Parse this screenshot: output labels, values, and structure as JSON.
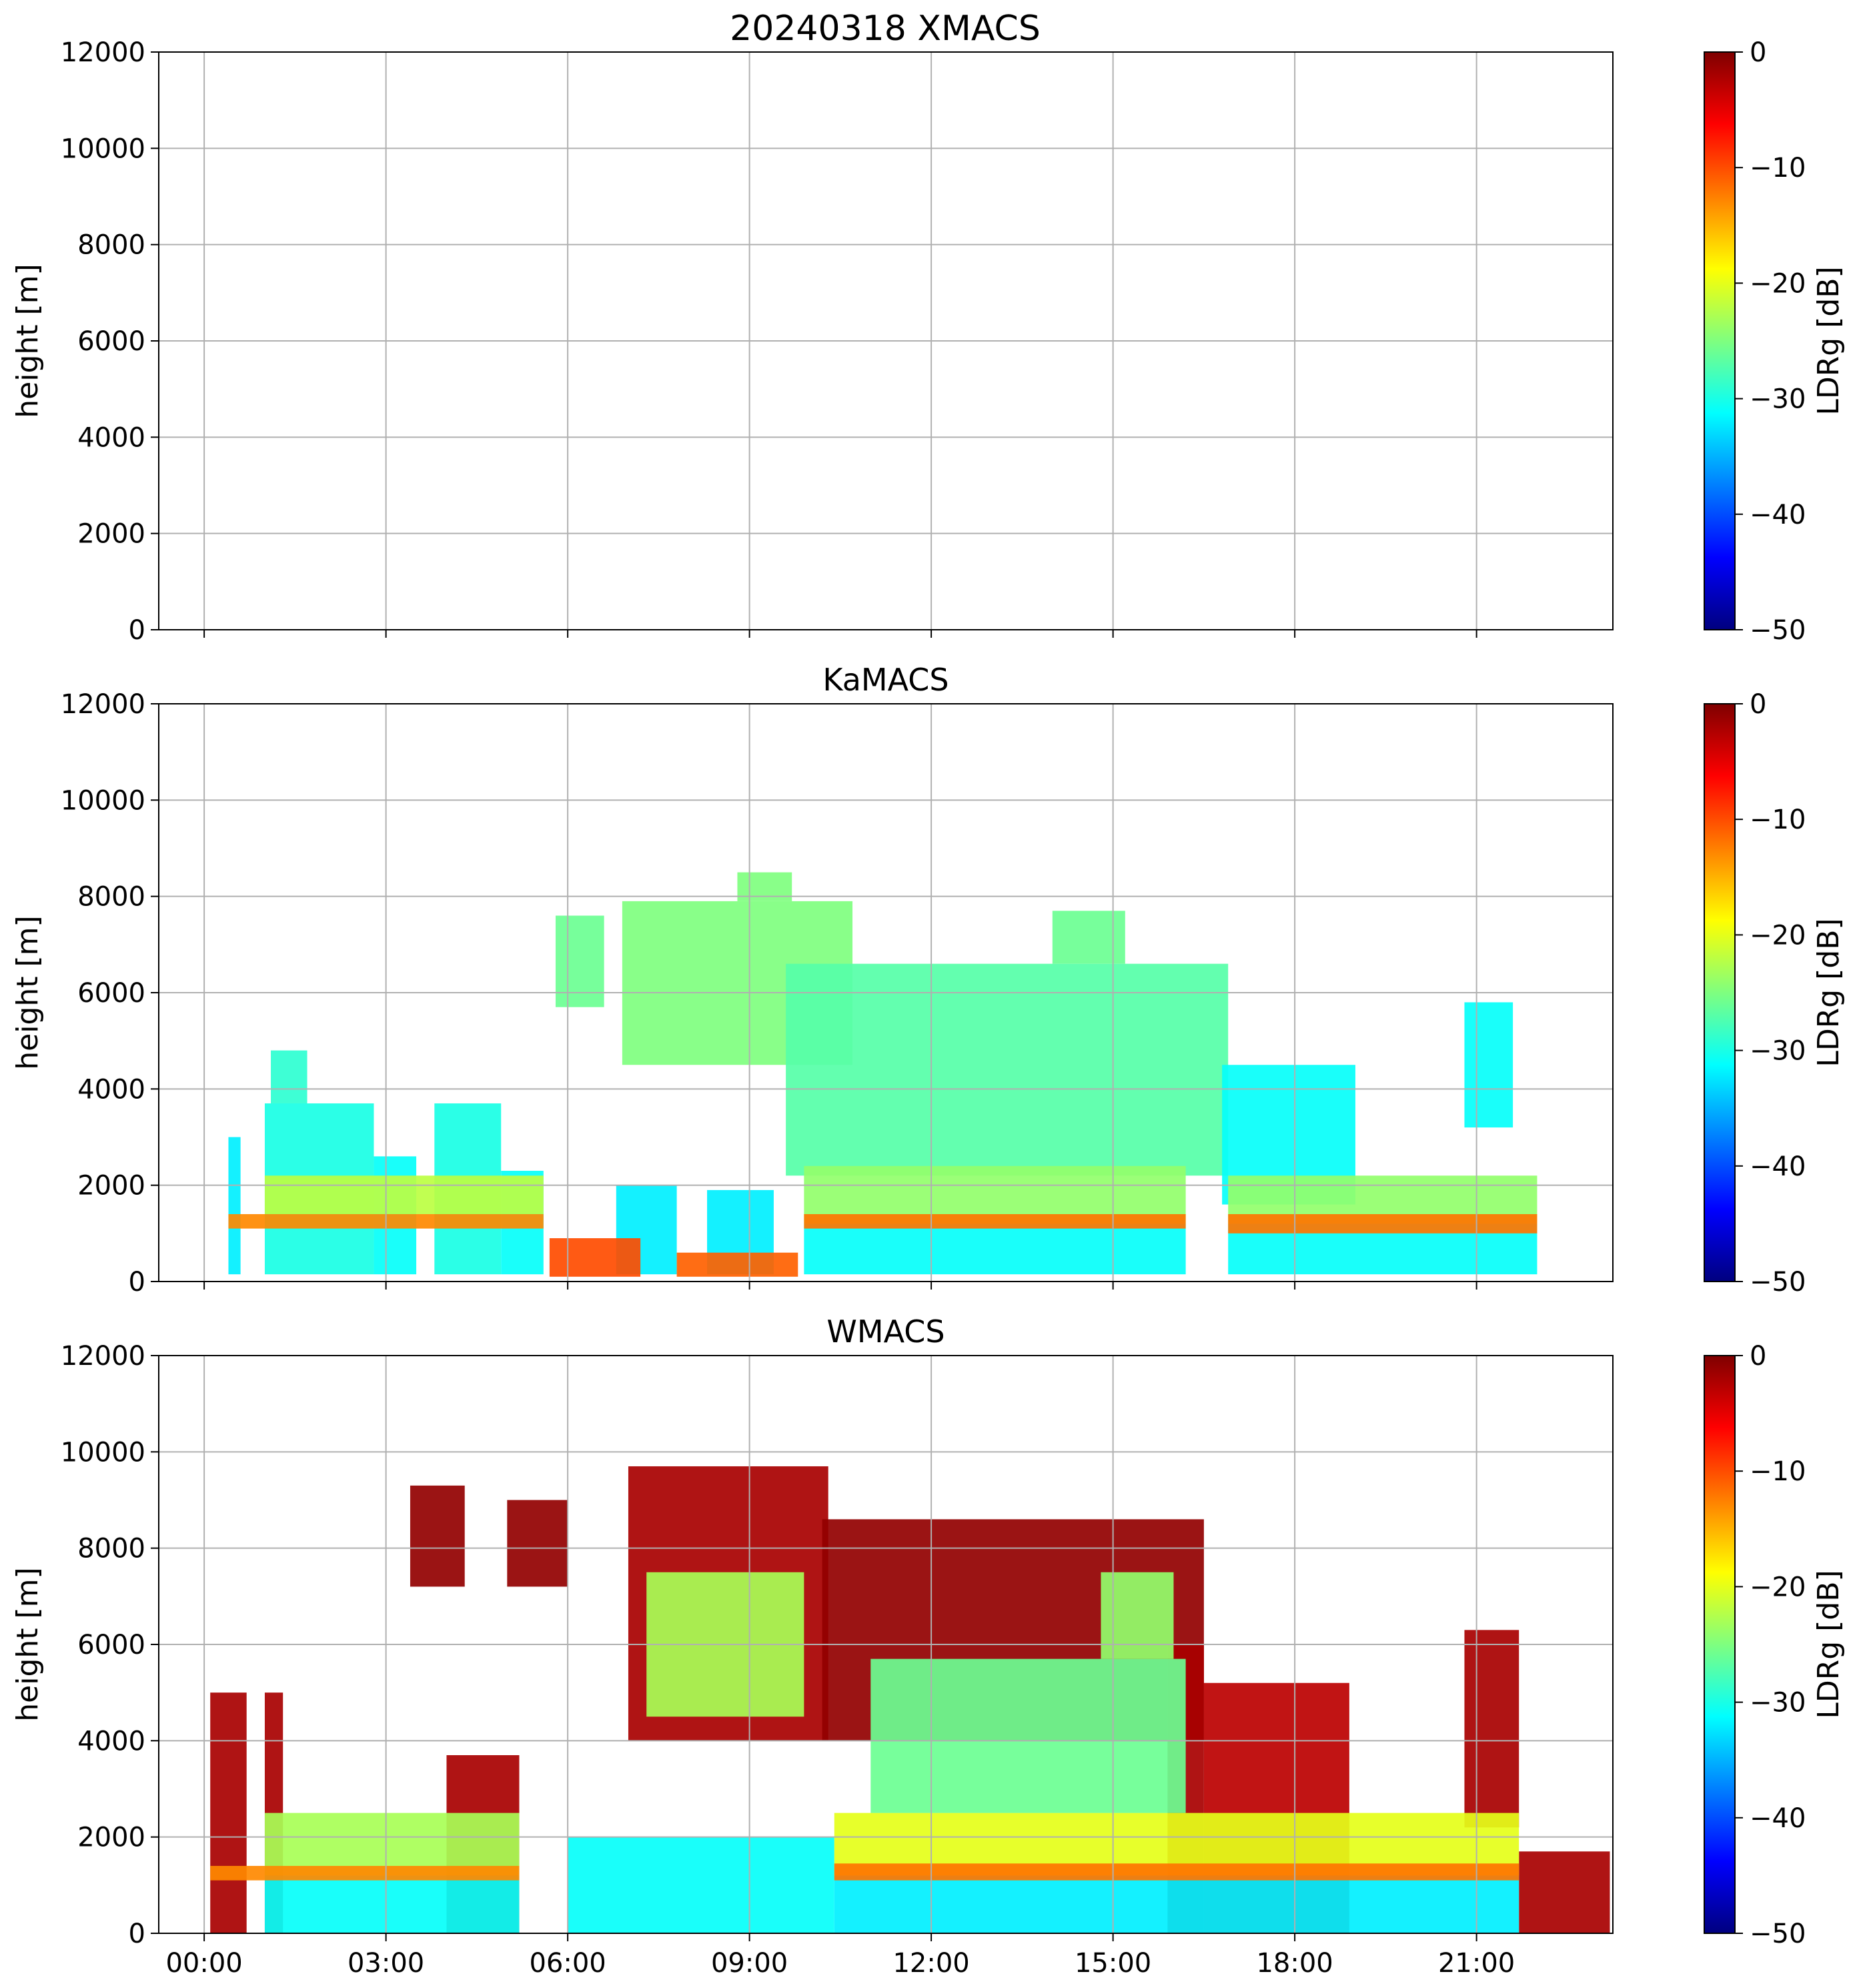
{
  "figure": {
    "title": "20240318 XMACS"
  },
  "colormap": [
    "#00007f",
    "#0000ff",
    "#007fff",
    "#00ffff",
    "#7fff7f",
    "#ffff00",
    "#ff7f00",
    "#ff0000",
    "#7f0000"
  ],
  "chart_data": [
    {
      "type": "heatmap",
      "title": "20240318 XMACS",
      "instrument": "XMACS",
      "xlabel": "",
      "ylabel": "height [m]",
      "ylim": [
        0,
        12000
      ],
      "yticks": [
        "0",
        "2000",
        "4000",
        "6000",
        "8000",
        "10000",
        "12000"
      ],
      "xlim_hours": [
        -0.75,
        23.25
      ],
      "xticks": [],
      "colorbar": {
        "label": "LDRg [dB]",
        "range": [
          -50,
          0
        ],
        "ticks": [
          "−50",
          "−40",
          "−30",
          "−20",
          "−10",
          "0"
        ]
      },
      "regions": []
    },
    {
      "type": "heatmap",
      "title": "KaMACS",
      "instrument": "KaMACS",
      "xlabel": "",
      "ylabel": "height [m]",
      "ylim": [
        0,
        12000
      ],
      "yticks": [
        "0",
        "2000",
        "4000",
        "6000",
        "8000",
        "10000",
        "12000"
      ],
      "xlim_hours": [
        -0.75,
        23.25
      ],
      "xticks": [],
      "colorbar": {
        "label": "LDRg [dB]",
        "range": [
          -50,
          0
        ],
        "ticks": [
          "−50",
          "−40",
          "−30",
          "−20",
          "−10",
          "0"
        ]
      },
      "regions": [
        {
          "t0": 0.4,
          "t1": 0.6,
          "h0": 150,
          "h1": 3000,
          "ldr": -32
        },
        {
          "t0": 1.0,
          "t1": 2.8,
          "h0": 150,
          "h1": 3700,
          "ldr": -30
        },
        {
          "t0": 1.1,
          "t1": 1.7,
          "h0": 3700,
          "h1": 4800,
          "ldr": -29
        },
        {
          "t0": 2.8,
          "t1": 3.5,
          "h0": 150,
          "h1": 2600,
          "ldr": -31
        },
        {
          "t0": 3.8,
          "t1": 4.9,
          "h0": 150,
          "h1": 3700,
          "ldr": -30
        },
        {
          "t0": 4.9,
          "t1": 5.6,
          "h0": 150,
          "h1": 2300,
          "ldr": -31
        },
        {
          "t0": 5.8,
          "t1": 6.6,
          "h0": 5700,
          "h1": 7600,
          "ldr": -26
        },
        {
          "t0": 6.9,
          "t1": 10.7,
          "h0": 4500,
          "h1": 7900,
          "ldr": -25
        },
        {
          "t0": 8.8,
          "t1": 9.7,
          "h0": 7900,
          "h1": 8500,
          "ldr": -25
        },
        {
          "t0": 9.6,
          "t1": 16.9,
          "h0": 2200,
          "h1": 6600,
          "ldr": -27
        },
        {
          "t0": 14.0,
          "t1": 15.2,
          "h0": 6600,
          "h1": 7700,
          "ldr": -26
        },
        {
          "t0": 16.8,
          "t1": 19.0,
          "h0": 1600,
          "h1": 4500,
          "ldr": -31
        },
        {
          "t0": 20.8,
          "t1": 21.6,
          "h0": 3200,
          "h1": 5800,
          "ldr": -31
        },
        {
          "t0": 6.8,
          "t1": 7.8,
          "h0": 150,
          "h1": 2000,
          "ldr": -32
        },
        {
          "t0": 8.3,
          "t1": 9.4,
          "h0": 150,
          "h1": 1900,
          "ldr": -32
        },
        {
          "t0": 9.9,
          "t1": 16.2,
          "h0": 150,
          "h1": 1200,
          "ldr": -31
        },
        {
          "t0": 16.9,
          "t1": 22.0,
          "h0": 150,
          "h1": 1200,
          "ldr": -31
        },
        {
          "t0": 9.9,
          "t1": 16.2,
          "h0": 1200,
          "h1": 2400,
          "ldr": -24
        },
        {
          "t0": 16.9,
          "t1": 22.0,
          "h0": 1200,
          "h1": 2200,
          "ldr": -24
        },
        {
          "t0": 1.0,
          "t1": 5.6,
          "h0": 1400,
          "h1": 2200,
          "ldr": -22
        },
        {
          "t0": 5.7,
          "t1": 7.2,
          "h0": 100,
          "h1": 900,
          "ldr": -10
        },
        {
          "t0": 7.8,
          "t1": 9.8,
          "h0": 100,
          "h1": 600,
          "ldr": -11
        },
        {
          "t0": 0.4,
          "t1": 5.6,
          "h0": 1100,
          "h1": 1400,
          "ldr": -13
        },
        {
          "t0": 9.9,
          "t1": 16.2,
          "h0": 1100,
          "h1": 1400,
          "ldr": -12
        },
        {
          "t0": 16.9,
          "t1": 22.0,
          "h0": 1000,
          "h1": 1400,
          "ldr": -12
        }
      ]
    },
    {
      "type": "heatmap",
      "title": "WMACS",
      "instrument": "WMACS",
      "xlabel": "",
      "ylabel": "height [m]",
      "ylim": [
        0,
        12000
      ],
      "yticks": [
        "0",
        "2000",
        "4000",
        "6000",
        "8000",
        "10000",
        "12000"
      ],
      "xlim_hours": [
        -0.75,
        23.25
      ],
      "xticks": [
        "00:00",
        "03:00",
        "06:00",
        "09:00",
        "12:00",
        "15:00",
        "18:00",
        "21:00"
      ],
      "colorbar": {
        "label": "LDRg [dB]",
        "range": [
          -50,
          0
        ],
        "ticks": [
          "−50",
          "−40",
          "−30",
          "−20",
          "−10",
          "0"
        ]
      },
      "regions": [
        {
          "t0": 0.1,
          "t1": 0.7,
          "h0": 0,
          "h1": 5000,
          "ldr": -2
        },
        {
          "t0": 1.0,
          "t1": 1.3,
          "h0": 0,
          "h1": 5000,
          "ldr": -2
        },
        {
          "t0": 4.0,
          "t1": 5.2,
          "h0": 0,
          "h1": 3700,
          "ldr": -2
        },
        {
          "t0": 3.4,
          "t1": 4.3,
          "h0": 7200,
          "h1": 9300,
          "ldr": -1
        },
        {
          "t0": 5.0,
          "t1": 6.0,
          "h0": 7200,
          "h1": 9000,
          "ldr": -1
        },
        {
          "t0": 7.0,
          "t1": 10.3,
          "h0": 4000,
          "h1": 9700,
          "ldr": -2
        },
        {
          "t0": 10.2,
          "t1": 16.5,
          "h0": 4000,
          "h1": 8600,
          "ldr": -1
        },
        {
          "t0": 15.9,
          "t1": 16.5,
          "h0": 0,
          "h1": 6000,
          "ldr": -2
        },
        {
          "t0": 16.5,
          "t1": 18.9,
          "h0": 0,
          "h1": 5200,
          "ldr": -3
        },
        {
          "t0": 20.8,
          "t1": 21.7,
          "h0": 2200,
          "h1": 6300,
          "ldr": -2
        },
        {
          "t0": 21.7,
          "t1": 23.2,
          "h0": 0,
          "h1": 1700,
          "ldr": -2
        },
        {
          "t0": 1.0,
          "t1": 5.2,
          "h0": 0,
          "h1": 1200,
          "ldr": -31
        },
        {
          "t0": 6.0,
          "t1": 10.4,
          "h0": 0,
          "h1": 2000,
          "ldr": -31
        },
        {
          "t0": 10.4,
          "t1": 21.7,
          "h0": 0,
          "h1": 1200,
          "ldr": -32
        },
        {
          "t0": 1.0,
          "t1": 5.2,
          "h0": 1200,
          "h1": 2500,
          "ldr": -23
        },
        {
          "t0": 10.4,
          "t1": 21.7,
          "h0": 1200,
          "h1": 2500,
          "ldr": -20
        },
        {
          "t0": 7.3,
          "t1": 9.9,
          "h0": 4500,
          "h1": 7500,
          "ldr": -23
        },
        {
          "t0": 11.0,
          "t1": 16.2,
          "h0": 2500,
          "h1": 5700,
          "ldr": -26
        },
        {
          "t0": 14.8,
          "t1": 16.0,
          "h0": 5700,
          "h1": 7500,
          "ldr": -24
        },
        {
          "t0": 10.4,
          "t1": 21.7,
          "h0": 1100,
          "h1": 1450,
          "ldr": -12
        },
        {
          "t0": 0.1,
          "t1": 5.2,
          "h0": 1100,
          "h1": 1400,
          "ldr": -13
        }
      ]
    }
  ]
}
